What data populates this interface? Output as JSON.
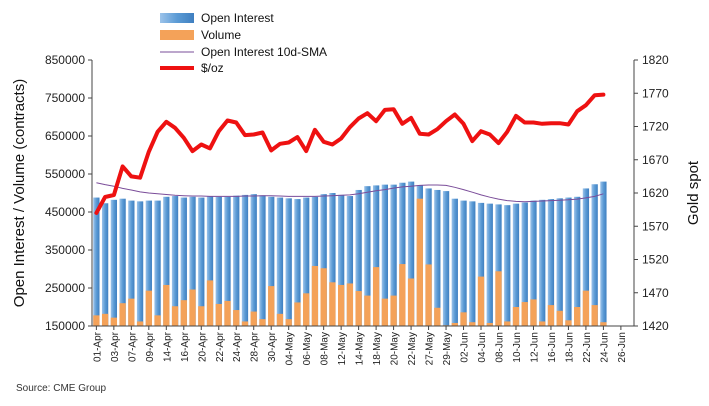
{
  "chart_data": {
    "type": "bar-line-combo",
    "dates": [
      "01-Apr",
      "02-Apr",
      "03-Apr",
      "06-Apr",
      "07-Apr",
      "08-Apr",
      "09-Apr",
      "10-Apr",
      "13-Apr",
      "14-Apr",
      "15-Apr",
      "16-Apr",
      "17-Apr",
      "20-Apr",
      "21-Apr",
      "22-Apr",
      "23-Apr",
      "24-Apr",
      "27-Apr",
      "28-Apr",
      "29-Apr",
      "30-Apr",
      "01-May",
      "04-May",
      "05-May",
      "06-May",
      "07-May",
      "08-May",
      "11-May",
      "12-May",
      "13-May",
      "14-May",
      "15-May",
      "18-May",
      "19-May",
      "20-May",
      "21-May",
      "22-May",
      "26-May",
      "27-May",
      "28-May",
      "29-May",
      "01-Jun",
      "02-Jun",
      "03-Jun",
      "04-Jun",
      "05-Jun",
      "08-Jun",
      "09-Jun",
      "10-Jun",
      "11-Jun",
      "12-Jun",
      "15-Jun",
      "16-Jun",
      "17-Jun",
      "18-Jun",
      "19-Jun",
      "22-Jun",
      "23-Jun"
    ],
    "x_tick_labels": [
      "01-Apr",
      "03-Apr",
      "07-Apr",
      "09-Apr",
      "14-Apr",
      "16-Apr",
      "20-Apr",
      "22-Apr",
      "24-Apr",
      "28-Apr",
      "30-Apr",
      "04-May",
      "06-May",
      "08-May",
      "12-May",
      "14-May",
      "18-May",
      "20-May",
      "22-May",
      "27-May",
      "29-May",
      "02-Jun",
      "04-Jun",
      "08-Jun",
      "10-Jun",
      "12-Jun",
      "16-Jun",
      "18-Jun",
      "22-Jun",
      "24-Jun",
      "26-Jun"
    ],
    "series": [
      {
        "name": "Open Interest",
        "type": "bar",
        "axis": "left",
        "color": "#5b9bd5",
        "values": [
          488000,
          473000,
          482000,
          485000,
          480000,
          478000,
          480000,
          480000,
          490000,
          492000,
          488000,
          490000,
          488000,
          492000,
          490000,
          490000,
          493000,
          495000,
          497000,
          494000,
          490000,
          488000,
          486000,
          484000,
          488000,
          490000,
          497000,
          500000,
          495000,
          492000,
          508000,
          518000,
          520000,
          522000,
          522000,
          527000,
          530000,
          520000,
          512000,
          508000,
          505000,
          485000,
          480000,
          478000,
          474000,
          472000,
          470000,
          468000,
          472000,
          475000,
          480000,
          482000,
          484000,
          486000,
          488000,
          490000,
          512000,
          523000,
          530000
        ]
      },
      {
        "name": "Volume",
        "type": "bar",
        "axis": "left",
        "color": "#f4a259",
        "values": [
          178000,
          182000,
          172000,
          210000,
          222000,
          162000,
          243000,
          178000,
          258000,
          202000,
          218000,
          246000,
          202000,
          270000,
          208000,
          216000,
          192000,
          162000,
          188000,
          168000,
          255000,
          182000,
          168000,
          212000,
          236000,
          308000,
          302000,
          265000,
          258000,
          262000,
          242000,
          230000,
          305000,
          222000,
          230000,
          313000,
          275000,
          485000,
          312000,
          198000,
          152000,
          158000,
          186000,
          160000,
          280000,
          158000,
          294000,
          162000,
          200000,
          213000,
          220000,
          162000,
          205000,
          190000,
          165000,
          200000,
          243000,
          205000,
          160000
        ]
      },
      {
        "name": "Open Interest 10d-SMA",
        "type": "line",
        "axis": "left",
        "color": "#7a4c99",
        "values": [
          527000,
          522000,
          518000,
          512000,
          508000,
          503000,
          500000,
          498000,
          496000,
          494000,
          493000,
          492000,
          492000,
          491000,
          491000,
          491000,
          491000,
          492000,
          492000,
          493000,
          493000,
          492000,
          491000,
          491000,
          491000,
          491000,
          492000,
          493000,
          494000,
          495000,
          498000,
          502000,
          506000,
          509000,
          513000,
          516000,
          518000,
          520000,
          521000,
          521000,
          520000,
          515000,
          509000,
          502000,
          495000,
          489000,
          484000,
          480000,
          478000,
          477000,
          478000,
          479000,
          480000,
          481000,
          482000,
          484000,
          487000,
          491000,
          498000
        ]
      },
      {
        "name": "$/oz",
        "type": "line",
        "axis": "right",
        "color": "#ee1111",
        "values": [
          1590,
          1614,
          1617,
          1660,
          1645,
          1643,
          1682,
          1712,
          1727,
          1718,
          1703,
          1683,
          1693,
          1687,
          1713,
          1729,
          1726,
          1707,
          1708,
          1711,
          1684,
          1694,
          1696,
          1704,
          1683,
          1715,
          1697,
          1693,
          1702,
          1719,
          1732,
          1740,
          1728,
          1745,
          1746,
          1724,
          1733,
          1709,
          1708,
          1716,
          1728,
          1738,
          1724,
          1698,
          1713,
          1708,
          1695,
          1712,
          1736,
          1726,
          1726,
          1724,
          1725,
          1725,
          1723,
          1743,
          1752,
          1767,
          1768
        ]
      }
    ],
    "left_axis": {
      "label": "Open Interest / Volume (contracts)",
      "min": 150000,
      "max": 850000,
      "ticks": [
        "150000",
        "250000",
        "350000",
        "450000",
        "550000",
        "650000",
        "750000",
        "850000"
      ]
    },
    "right_axis": {
      "label": "Gold spot",
      "min": 1420,
      "max": 1820,
      "ticks": [
        "1420",
        "1470",
        "1520",
        "1570",
        "1620",
        "1670",
        "1720",
        "1770",
        "1820"
      ]
    },
    "legend": {
      "position": "top-left",
      "entries": [
        "Open Interest",
        "Volume",
        "Open Interest 10d-SMA",
        "$/oz"
      ]
    },
    "grid": false
  },
  "source": "Source: CME Group"
}
